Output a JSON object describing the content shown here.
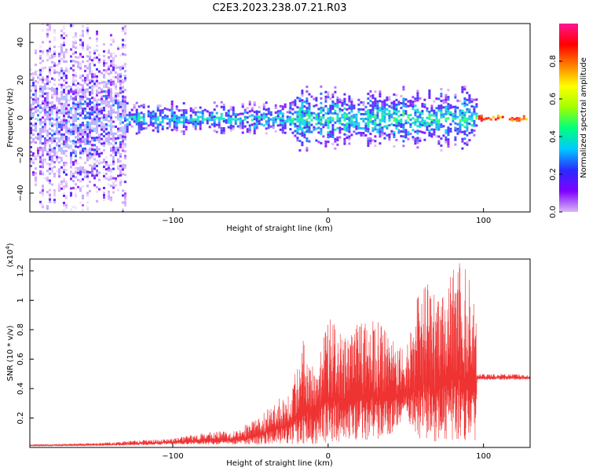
{
  "figure_title": "C2E3.2023.238.07.21.R03",
  "chart_data": [
    {
      "type": "heatmap",
      "xlabel": "Height of straight line (km)",
      "ylabel": "Frequency (Hz)",
      "xlim": [
        -192,
        130
      ],
      "ylim": [
        -50,
        50
      ],
      "xticks": [
        -100,
        0,
        100
      ],
      "yticks": [
        -40,
        -20,
        0,
        20,
        40
      ],
      "colorbar": {
        "label": "Normalized spectral amplitude",
        "range": [
          0,
          1
        ],
        "ticks": [
          0.0,
          0.2,
          0.4,
          0.6,
          0.8
        ],
        "colormap": [
          "#d8b8f4",
          "#7f00ff",
          "#2a2aff",
          "#00c8ff",
          "#00ff80",
          "#a0ff00",
          "#ffff00",
          "#ff8000",
          "#ff0000",
          "#ff1493"
        ]
      },
      "bands": [
        {
          "x_from": -192,
          "x_to": -130,
          "center": 0,
          "halfwidth": 50,
          "amplitude": 0.2
        },
        {
          "x_from": -130,
          "x_to": -25,
          "center": 0,
          "halfwidth": 8,
          "amplitude": 0.35
        },
        {
          "x_from": -25,
          "x_to": 95,
          "center": 0,
          "halfwidth": 15,
          "amplitude": 0.4
        },
        {
          "x_from": 95,
          "x_to": 130,
          "center": 0,
          "halfwidth": 1.5,
          "amplitude": 0.8
        }
      ]
    },
    {
      "type": "line",
      "xlabel": "Height of straight line (km)",
      "ylabel": "SNR (10 * v/v)",
      "y_multiplier": "(x10",
      "y_multiplier_exp": "4",
      "y_multiplier_close": ")",
      "xlim": [
        -192,
        130
      ],
      "ylim": [
        0,
        1.28
      ],
      "xticks": [
        -100,
        0,
        100
      ],
      "yticks": [
        0.2,
        0.4,
        0.6,
        0.8,
        1.0,
        1.2
      ],
      "color": "#ef3333",
      "envelope": {
        "x": [
          -192,
          -150,
          -120,
          -100,
          -90,
          -80,
          -60,
          -45,
          -35,
          -25,
          -20,
          -15,
          -10,
          0,
          10,
          20,
          30,
          40,
          45,
          50,
          55,
          60,
          70,
          80,
          85,
          90,
          95,
          96,
          97,
          130
        ],
        "low": [
          0.01,
          0.01,
          0.015,
          0.02,
          0.02,
          0.02,
          0.02,
          0.02,
          0.02,
          0.02,
          0.02,
          0.02,
          0.02,
          0.03,
          0.04,
          0.05,
          0.05,
          0.08,
          0.15,
          0.2,
          0.1,
          0.05,
          0.04,
          0.04,
          0.04,
          0.04,
          0.05,
          0.46,
          0.46,
          0.46
        ],
        "high": [
          0.02,
          0.03,
          0.05,
          0.06,
          0.08,
          0.1,
          0.12,
          0.2,
          0.3,
          0.4,
          0.55,
          0.8,
          0.55,
          0.9,
          0.75,
          0.85,
          0.9,
          0.75,
          0.7,
          0.65,
          0.9,
          1.15,
          1.05,
          1.25,
          1.28,
          1.2,
          1.0,
          0.5,
          0.5,
          0.5
        ]
      }
    }
  ]
}
